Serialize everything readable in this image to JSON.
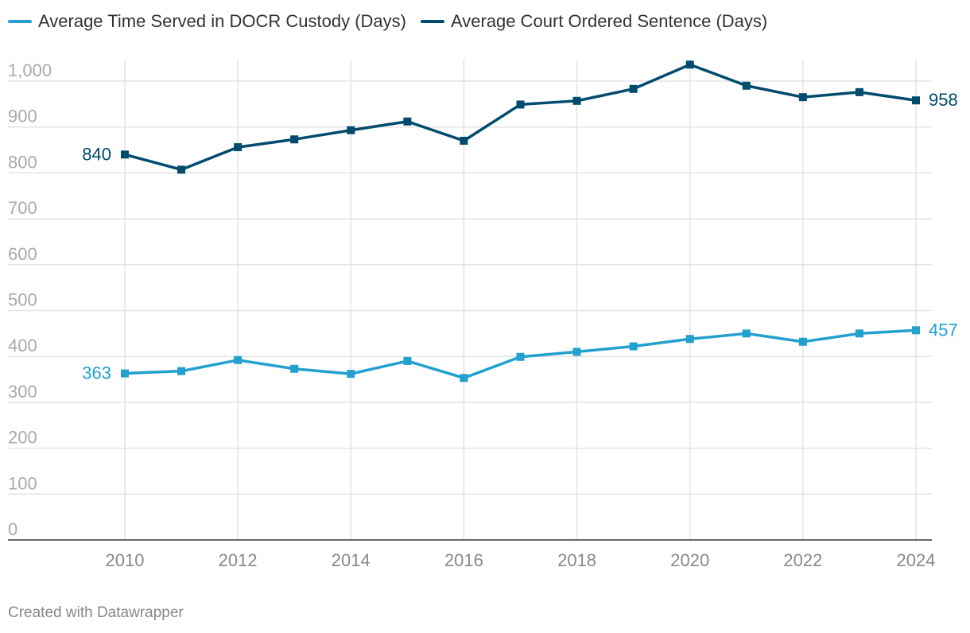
{
  "chart_data": {
    "type": "line",
    "title": "",
    "xlabel": "",
    "ylabel": "",
    "x": [
      2010,
      2011,
      2012,
      2013,
      2014,
      2015,
      2016,
      2017,
      2018,
      2019,
      2020,
      2021,
      2022,
      2023,
      2024
    ],
    "x_ticks": [
      "2010",
      "2012",
      "2014",
      "2016",
      "2018",
      "2020",
      "2022",
      "2024"
    ],
    "y_ticks": [
      "0",
      "100",
      "200",
      "300",
      "400",
      "500",
      "600",
      "700",
      "800",
      "900",
      "1,000"
    ],
    "ylim": [
      0,
      1000
    ],
    "grid": true,
    "legend_position": "top-left",
    "series": [
      {
        "name": "Average Time Served in DOCR Custody (Days)",
        "color": "#22a0cf",
        "values": [
          363,
          368,
          392,
          373,
          362,
          390,
          353,
          399,
          410,
          422,
          438,
          450,
          432,
          450,
          457
        ],
        "labels": {
          "first": "363",
          "last": "457"
        }
      },
      {
        "name": "Average Court Ordered Sentence (Days)",
        "color": "#004b6e",
        "values": [
          840,
          807,
          856,
          873,
          893,
          912,
          870,
          949,
          957,
          983,
          1036,
          990,
          965,
          976,
          958
        ],
        "labels": {
          "first": "840",
          "last": "958"
        }
      }
    ]
  },
  "footer": "Created with Datawrapper"
}
